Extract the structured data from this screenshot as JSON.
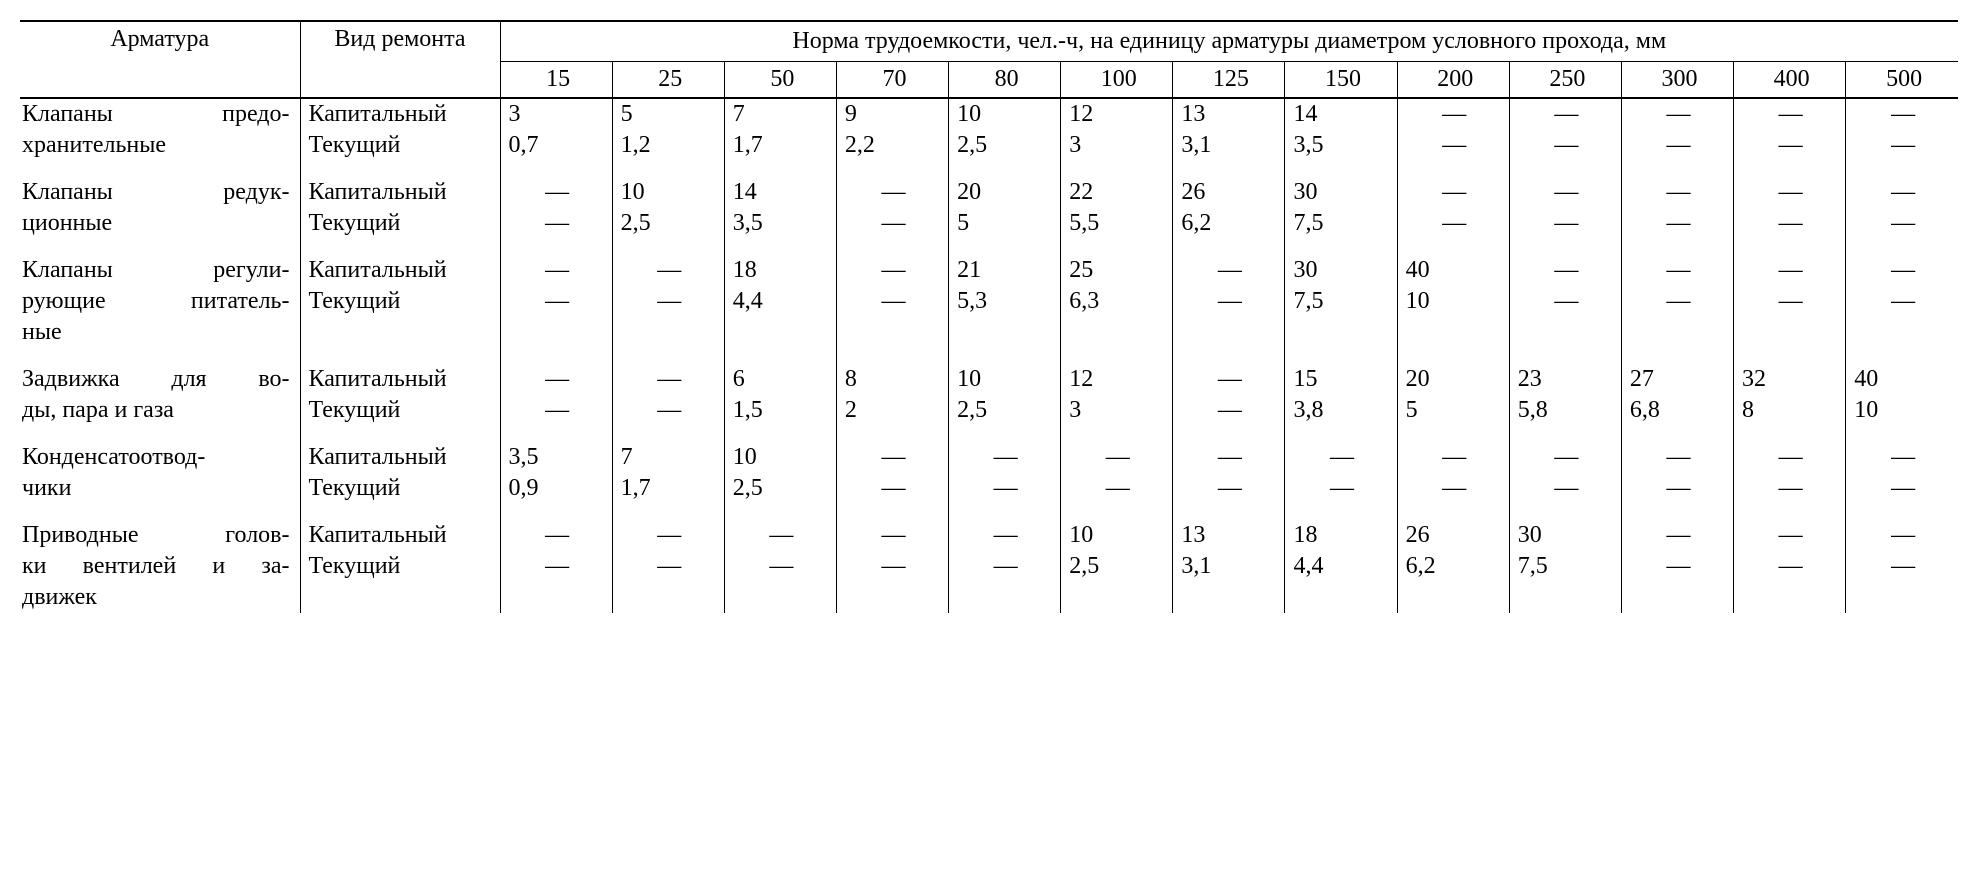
{
  "table": {
    "header": {
      "armatura": "Арматура",
      "vid_remonta": "Вид ремонта",
      "norm_title": "Норма трудоемкости, чел.-ч, на единицу арматуры диаметром условного прохода, мм",
      "diameters": [
        "15",
        "25",
        "50",
        "70",
        "80",
        "100",
        "125",
        "150",
        "200",
        "250",
        "300",
        "400",
        "500"
      ]
    },
    "rows": [
      {
        "armatura": [
          "Клапаны предо-",
          "хранительные"
        ],
        "sub": [
          {
            "vid": "Капитальный",
            "vals": [
              "3",
              "5",
              "7",
              "9",
              "10",
              "12",
              "13",
              "14",
              "—",
              "—",
              "—",
              "—",
              "—"
            ]
          },
          {
            "vid": "Текущий",
            "vals": [
              "0,7",
              "1,2",
              "1,7",
              "2,2",
              "2,5",
              "3",
              "3,1",
              "3,5",
              "—",
              "—",
              "—",
              "—",
              "—"
            ]
          }
        ]
      },
      {
        "armatura": [
          "Клапаны редук-",
          "ционные"
        ],
        "sub": [
          {
            "vid": "Капитальный",
            "vals": [
              "—",
              "10",
              "14",
              "—",
              "20",
              "22",
              "26",
              "30",
              "—",
              "—",
              "—",
              "—",
              "—"
            ]
          },
          {
            "vid": "Текущий",
            "vals": [
              "—",
              "2,5",
              "3,5",
              "—",
              "5",
              "5,5",
              "6,2",
              "7,5",
              "—",
              "—",
              "—",
              "—",
              "—"
            ]
          }
        ]
      },
      {
        "armatura": [
          "Клапаны регули-",
          "рующие питатель-",
          "ные"
        ],
        "sub": [
          {
            "vid": "Капитальный",
            "vals": [
              "—",
              "—",
              "18",
              "—",
              "21",
              "25",
              "—",
              "30",
              "40",
              "—",
              "—",
              "—",
              "—"
            ]
          },
          {
            "vid": "Текущий",
            "vals": [
              "—",
              "—",
              "4,4",
              "—",
              "5,3",
              "6,3",
              "—",
              "7,5",
              "10",
              "—",
              "—",
              "—",
              "—"
            ]
          }
        ]
      },
      {
        "armatura": [
          "Задвижка для во-",
          "ды, пара и газа"
        ],
        "sub": [
          {
            "vid": "Капитальный",
            "vals": [
              "—",
              "—",
              "6",
              "8",
              "10",
              "12",
              "—",
              "15",
              "20",
              "23",
              "27",
              "32",
              "40"
            ]
          },
          {
            "vid": "Текущий",
            "vals": [
              "—",
              "—",
              "1,5",
              "2",
              "2,5",
              "3",
              "—",
              "3,8",
              "5",
              "5,8",
              "6,8",
              "8",
              "10"
            ]
          }
        ]
      },
      {
        "armatura": [
          "Конденсатоотвод-",
          "чики"
        ],
        "sub": [
          {
            "vid": "Капитальный",
            "vals": [
              "3,5",
              "7",
              "10",
              "—",
              "—",
              "—",
              "—",
              "—",
              "—",
              "—",
              "—",
              "—",
              "—"
            ]
          },
          {
            "vid": "Текущий",
            "vals": [
              "0,9",
              "1,7",
              "2,5",
              "—",
              "—",
              "—",
              "—",
              "—",
              "—",
              "—",
              "—",
              "—",
              "—"
            ]
          }
        ]
      },
      {
        "armatura": [
          "Приводные голов-",
          "ки вентилей и за-",
          "движек"
        ],
        "sub": [
          {
            "vid": "Капитальный",
            "vals": [
              "—",
              "—",
              "—",
              "—",
              "—",
              "10",
              "13",
              "18",
              "26",
              "30",
              "—",
              "—",
              "—"
            ]
          },
          {
            "vid": "Текущий",
            "vals": [
              "—",
              "—",
              "—",
              "—",
              "—",
              "2,5",
              "3,1",
              "4,4",
              "6,2",
              "7,5",
              "—",
              "—",
              "—"
            ]
          }
        ]
      }
    ]
  },
  "style": {
    "font_family": "Times New Roman",
    "font_size_pt": 18,
    "text_color": "#000000",
    "background_color": "#ffffff",
    "rule_color": "#000000"
  }
}
